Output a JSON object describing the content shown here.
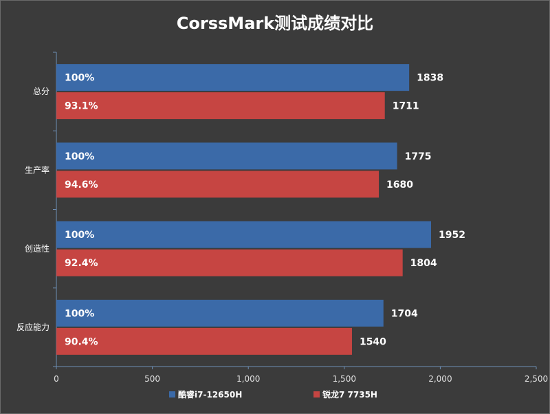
{
  "chart_data": {
    "type": "bar",
    "orientation": "horizontal",
    "title": "CorssMark测试成绩对比",
    "categories": [
      "总分",
      "生产率",
      "创造性",
      "反应能力"
    ],
    "series": [
      {
        "name": "酷睿i7-12650H",
        "color": "#3b6aa8",
        "values": [
          1838,
          1775,
          1952,
          1704
        ],
        "percent_labels": [
          "100%",
          "100%",
          "100%",
          "100%"
        ]
      },
      {
        "name": "锐龙7 7735H",
        "color": "#c64542",
        "values": [
          1711,
          1680,
          1804,
          1540
        ],
        "percent_labels": [
          "93.1%",
          "94.6%",
          "92.4%",
          "90.4%"
        ]
      }
    ],
    "xlim": [
      0,
      2500
    ],
    "x_ticks": [
      0,
      500,
      1000,
      1500,
      2000,
      2500
    ],
    "x_tick_labels": [
      "0",
      "500",
      "1,000",
      "1,500",
      "2,000",
      "2,500"
    ],
    "grid": false,
    "legend_position": "bottom"
  }
}
